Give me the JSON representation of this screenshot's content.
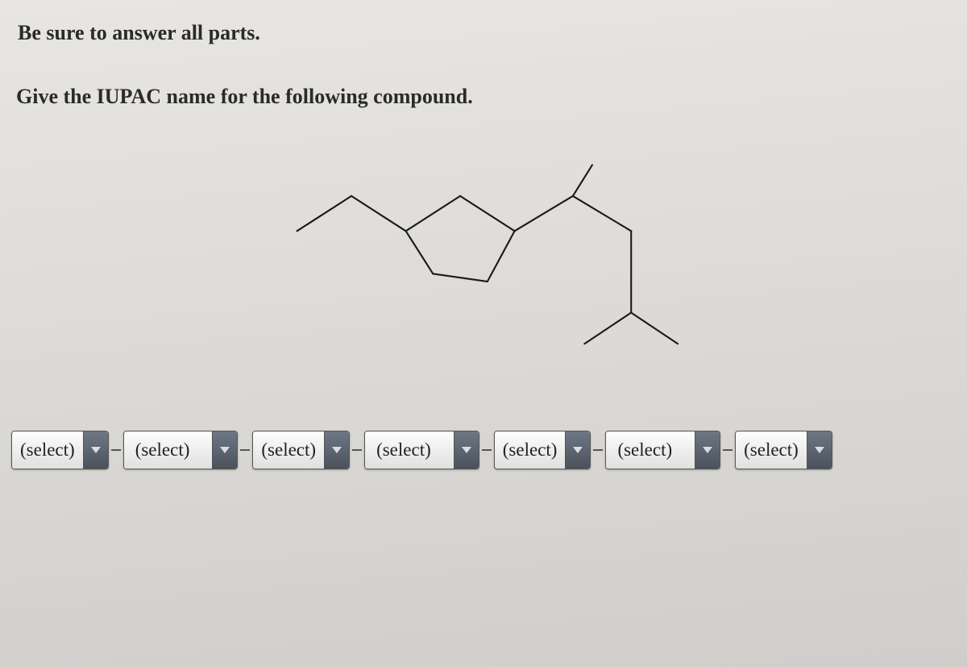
{
  "instructions": {
    "line1": "Be sure to answer all parts.",
    "line2": "Give the IUPAC name for the following compound."
  },
  "molecule": {
    "stroke_color": "#1a1a1a",
    "stroke_width": 2.2,
    "segments": [
      [
        40,
        100,
        110,
        55
      ],
      [
        110,
        55,
        180,
        100
      ],
      [
        180,
        100,
        250,
        55
      ],
      [
        250,
        55,
        320,
        100
      ],
      [
        320,
        100,
        395,
        55
      ],
      [
        395,
        55,
        420,
        15
      ],
      [
        395,
        55,
        470,
        100
      ],
      [
        470,
        100,
        470,
        205
      ],
      [
        470,
        205,
        410,
        245
      ],
      [
        470,
        205,
        530,
        245
      ],
      [
        180,
        100,
        215,
        155
      ],
      [
        215,
        155,
        285,
        165
      ],
      [
        285,
        165,
        320,
        100
      ]
    ]
  },
  "dropdowns": [
    {
      "label": "(select)",
      "width_class": "dd-narrow"
    },
    {
      "label": "(select)",
      "width_class": "dd-wide"
    },
    {
      "label": "(select)",
      "width_class": "dd-narrow"
    },
    {
      "label": "(select)",
      "width_class": "dd-wide"
    },
    {
      "label": "(select)",
      "width_class": "dd-narrow"
    },
    {
      "label": "(select)",
      "width_class": "dd-wide"
    },
    {
      "label": "(select)",
      "width_class": "dd-narrow"
    }
  ],
  "colors": {
    "arrow_fill": "#dcdde0"
  }
}
